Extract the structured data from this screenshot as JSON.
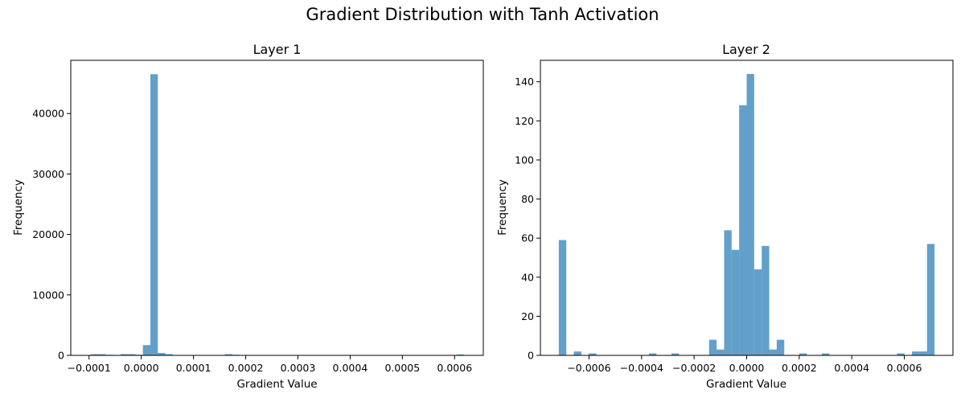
{
  "figure": {
    "title": "Gradient Distribution with Tanh Activation"
  },
  "colors": {
    "bar": "#1f77b4",
    "bar_opacity": 0.7
  },
  "chart_data": [
    {
      "type": "bar",
      "title": "Layer 1",
      "xlabel": "Gradient Value",
      "ylabel": "Frequency",
      "xlim": [
        -0.000135,
        0.000655
      ],
      "ylim": [
        0,
        48800
      ],
      "xticks": [
        -0.0001,
        0.0,
        0.0001,
        0.0002,
        0.0003,
        0.0004,
        0.0005,
        0.0006
      ],
      "xtick_labels": [
        "−0.0001",
        "0.0000",
        "0.0001",
        "0.0002",
        "0.0003",
        "0.0004",
        "0.0005",
        "0.0006"
      ],
      "yticks": [
        0,
        10000,
        20000,
        30000,
        40000
      ],
      "ytick_labels": [
        "0",
        "10000",
        "20000",
        "30000",
        "40000"
      ],
      "bin_range": [
        -9.7e-05,
        0.000618
      ],
      "bins": 50,
      "counts": [
        200,
        200,
        100,
        50,
        200,
        200,
        100,
        1700,
        46500,
        400,
        200,
        50,
        20,
        10,
        5,
        5,
        2,
        10,
        200,
        100,
        5,
        3,
        2,
        1,
        1,
        1,
        1,
        1,
        1,
        1,
        1,
        1,
        1,
        1,
        1,
        1,
        1,
        1,
        1,
        1,
        1,
        1,
        1,
        1,
        1,
        1,
        1,
        1,
        2,
        150
      ],
      "grid": false,
      "legend": "none"
    },
    {
      "type": "bar",
      "title": "Layer 2",
      "xlabel": "Gradient Value",
      "ylabel": "Frequency",
      "xlim": [
        -0.000785,
        0.000785
      ],
      "ylim": [
        0,
        151
      ],
      "xticks": [
        -0.0006,
        -0.0004,
        -0.0002,
        0.0,
        0.0002,
        0.0004,
        0.0006
      ],
      "xtick_labels": [
        "−0.0006",
        "−0.0004",
        "−0.0002",
        "0.0000",
        "0.0002",
        "0.0004",
        "0.0006"
      ],
      "yticks": [
        0,
        20,
        40,
        60,
        80,
        100,
        120,
        140
      ],
      "ytick_labels": [
        "0",
        "20",
        "40",
        "60",
        "80",
        "100",
        "120",
        "140"
      ],
      "bin_range": [
        -0.000715,
        0.000715
      ],
      "bins": 50,
      "counts": [
        59,
        0,
        2,
        0,
        1,
        0,
        0,
        0,
        0,
        0,
        0,
        0,
        1,
        0,
        0,
        1,
        0,
        0,
        0,
        0,
        8,
        3,
        64,
        54,
        128,
        144,
        44,
        56,
        3,
        8,
        0,
        0,
        1,
        0,
        0,
        1,
        0,
        0,
        0,
        0,
        0,
        0,
        0,
        0,
        0,
        1,
        0,
        2,
        2,
        57
      ],
      "grid": false,
      "legend": "none"
    }
  ]
}
